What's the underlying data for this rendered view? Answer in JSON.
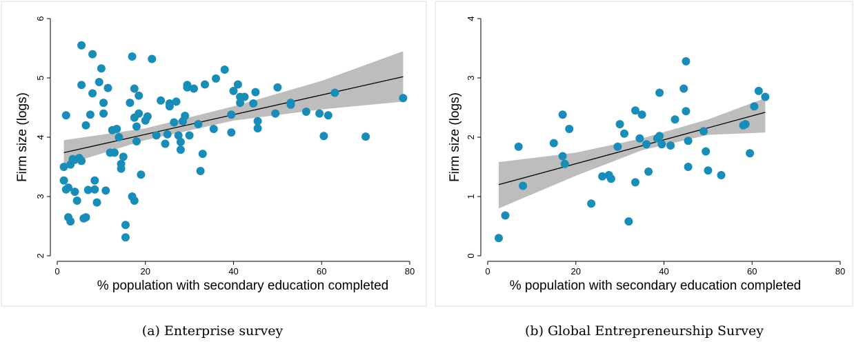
{
  "figure": {
    "captions": [
      "(a)  Enterprise survey",
      "(b)  Global Entrepreneurship Survey"
    ]
  },
  "colors": {
    "marker": "#1a8cb8",
    "band": "#bdbdbd",
    "fit_line": "#000000"
  },
  "chart_data": [
    {
      "type": "scatter",
      "xlabel": "% population with secondary education completed",
      "ylabel": "Firm size (logs)",
      "xlim": [
        0,
        80
      ],
      "ylim": [
        2,
        6
      ],
      "xticks": [
        0,
        20,
        40,
        60,
        80
      ],
      "yticks": [
        2,
        3,
        4,
        5,
        6
      ],
      "grid": false,
      "points": [
        [
          1.5,
          3.5
        ],
        [
          2,
          4.37
        ],
        [
          1.5,
          3.27
        ],
        [
          2,
          3.12
        ],
        [
          2.5,
          3.15
        ],
        [
          2.5,
          2.65
        ],
        [
          3,
          3.54
        ],
        [
          3,
          2.58
        ],
        [
          3.5,
          3.63
        ],
        [
          4,
          3.62
        ],
        [
          4,
          3.08
        ],
        [
          4.5,
          2.93
        ],
        [
          5,
          3.65
        ],
        [
          5.5,
          3.6
        ],
        [
          5.5,
          4.88
        ],
        [
          5.5,
          5.55
        ],
        [
          6,
          2.63
        ],
        [
          6.5,
          4.2
        ],
        [
          6.5,
          2.65
        ],
        [
          7,
          3.11
        ],
        [
          7.5,
          4.38
        ],
        [
          8,
          4.74
        ],
        [
          8,
          5.4
        ],
        [
          8.5,
          3.12
        ],
        [
          8.5,
          3.27
        ],
        [
          9,
          2.9
        ],
        [
          9.5,
          4.93
        ],
        [
          10,
          5.16
        ],
        [
          10.5,
          4.58
        ],
        [
          10.5,
          4.4
        ],
        [
          11,
          3.1
        ],
        [
          11.5,
          4.83
        ],
        [
          12,
          3.74
        ],
        [
          12.5,
          4.12
        ],
        [
          13,
          3.74
        ],
        [
          13.5,
          4.14
        ],
        [
          14,
          4.0
        ],
        [
          14.5,
          3.55
        ],
        [
          14.5,
          3.47
        ],
        [
          15,
          3.67
        ],
        [
          15.5,
          2.52
        ],
        [
          15.5,
          2.31
        ],
        [
          16.5,
          4.58
        ],
        [
          17,
          5.36
        ],
        [
          17,
          3.0
        ],
        [
          17.5,
          2.93
        ],
        [
          17.5,
          4.33
        ],
        [
          17.5,
          4.82
        ],
        [
          18,
          4.18
        ],
        [
          18,
          3.93
        ],
        [
          18.5,
          4.7
        ],
        [
          18.5,
          4.4
        ],
        [
          19,
          3.37
        ],
        [
          20,
          4.28
        ],
        [
          20.5,
          4.35
        ],
        [
          21.5,
          5.32
        ],
        [
          22.5,
          4.03
        ],
        [
          23.5,
          4.62
        ],
        [
          24.5,
          3.89
        ],
        [
          25,
          4.05
        ],
        [
          25.5,
          4.57
        ],
        [
          25.5,
          4.52
        ],
        [
          26.5,
          4.25
        ],
        [
          27,
          4.6
        ],
        [
          27.5,
          4.03
        ],
        [
          28,
          3.79
        ],
        [
          28,
          3.92
        ],
        [
          28.5,
          4.27
        ],
        [
          29,
          4.36
        ],
        [
          29.5,
          4.84
        ],
        [
          29.5,
          4.88
        ],
        [
          30,
          4.03
        ],
        [
          31,
          4.82
        ],
        [
          32,
          4.22
        ],
        [
          32.5,
          3.43
        ],
        [
          33,
          3.72
        ],
        [
          33.5,
          4.89
        ],
        [
          35.5,
          4.14
        ],
        [
          36,
          4.99
        ],
        [
          38,
          5.14
        ],
        [
          39.5,
          4.38
        ],
        [
          39.5,
          4.08
        ],
        [
          40,
          4.78
        ],
        [
          41,
          4.89
        ],
        [
          41.5,
          4.68
        ],
        [
          41.5,
          4.58
        ],
        [
          42.5,
          4.68
        ],
        [
          44.5,
          4.57
        ],
        [
          45,
          4.76
        ],
        [
          45.5,
          4.27
        ],
        [
          45.5,
          4.15
        ],
        [
          49.5,
          4.4
        ],
        [
          50,
          4.84
        ],
        [
          53,
          4.58
        ],
        [
          53,
          4.55
        ],
        [
          56.5,
          4.43
        ],
        [
          59.5,
          4.4
        ],
        [
          60.5,
          4.02
        ],
        [
          61.5,
          4.37
        ],
        [
          63,
          4.75
        ],
        [
          70,
          4.01
        ],
        [
          78.5,
          4.66
        ]
      ],
      "fit": {
        "x": [
          1.5,
          78.5
        ],
        "y": [
          3.74,
          5.02
        ]
      },
      "band": {
        "x": [
          1.5,
          20,
          40,
          60,
          78.5
        ],
        "lower": [
          3.53,
          3.95,
          4.28,
          4.47,
          4.6
        ],
        "upper": [
          3.95,
          4.15,
          4.52,
          4.95,
          5.45
        ]
      }
    },
    {
      "type": "scatter",
      "xlabel": "% population with secondary education completed",
      "ylabel": "Firm size (logs)",
      "xlim": [
        0,
        80
      ],
      "ylim": [
        0,
        4
      ],
      "xticks": [
        0,
        20,
        40,
        60,
        80
      ],
      "yticks": [
        0,
        1,
        2,
        3,
        4
      ],
      "grid": false,
      "points": [
        [
          2.5,
          0.3
        ],
        [
          4,
          0.68
        ],
        [
          7,
          1.84
        ],
        [
          8,
          1.18
        ],
        [
          15,
          1.9
        ],
        [
          17,
          1.68
        ],
        [
          17,
          2.38
        ],
        [
          17.5,
          1.55
        ],
        [
          18.5,
          2.14
        ],
        [
          23.5,
          0.88
        ],
        [
          26,
          1.34
        ],
        [
          27.5,
          1.36
        ],
        [
          28,
          1.3
        ],
        [
          29.5,
          1.84
        ],
        [
          30,
          2.22
        ],
        [
          31,
          2.06
        ],
        [
          32,
          0.58
        ],
        [
          33.5,
          1.24
        ],
        [
          33.5,
          2.45
        ],
        [
          34.5,
          1.98
        ],
        [
          35,
          2.38
        ],
        [
          36,
          1.88
        ],
        [
          36.5,
          1.42
        ],
        [
          38.5,
          1.98
        ],
        [
          39,
          2.02
        ],
        [
          39,
          2.75
        ],
        [
          39.5,
          1.88
        ],
        [
          41.5,
          1.86
        ],
        [
          42.5,
          2.3
        ],
        [
          44.5,
          2.82
        ],
        [
          45,
          3.28
        ],
        [
          45,
          2.44
        ],
        [
          45.5,
          1.94
        ],
        [
          45.5,
          1.5
        ],
        [
          49,
          2.1
        ],
        [
          49.5,
          1.76
        ],
        [
          50,
          1.44
        ],
        [
          53,
          1.36
        ],
        [
          58,
          2.2
        ],
        [
          58.5,
          2.22
        ],
        [
          59.5,
          1.73
        ],
        [
          60.5,
          2.52
        ],
        [
          61.5,
          2.78
        ],
        [
          63,
          2.68
        ]
      ],
      "fit": {
        "x": [
          2.5,
          63
        ],
        "y": [
          1.2,
          2.42
        ]
      },
      "band": {
        "x": [
          2.5,
          20,
          35,
          50,
          63
        ],
        "lower": [
          0.8,
          1.35,
          1.78,
          2.04,
          2.08
        ],
        "upper": [
          1.58,
          1.74,
          1.98,
          2.3,
          2.66
        ]
      }
    }
  ]
}
